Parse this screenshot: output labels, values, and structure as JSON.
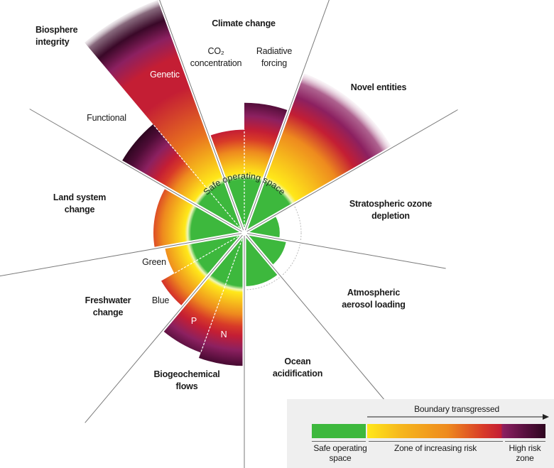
{
  "safe_operating_space_label": "Safe operating space",
  "colors": {
    "safe": "#3db83d",
    "increasing_risk_start": "#ffe81a",
    "increasing_risk_mid": "#ee8a1e",
    "increasing_risk_end": "#c41e34",
    "high_risk": "#8c2060",
    "high_risk_end": "#2e0620"
  },
  "boundaries": [
    {
      "title": [
        "Climate change"
      ],
      "subs": [
        {
          "label": [
            "CO₂",
            "concentration"
          ],
          "level": 1.84
        },
        {
          "label": [
            "Radiative",
            "forcing"
          ],
          "level": 2.32
        }
      ]
    },
    {
      "title": [
        "Novel entities"
      ],
      "subs": [
        {
          "label": [],
          "level": 3.04,
          "off_scale": true
        }
      ]
    },
    {
      "title": [
        "Stratospheric ozone",
        "depletion"
      ],
      "subs": [
        {
          "label": [],
          "level": 0.63
        }
      ]
    },
    {
      "title": [
        "Atmospheric",
        "aerosol loading"
      ],
      "subs": [
        {
          "label": [],
          "level": 0.76
        }
      ]
    },
    {
      "title": [
        "Ocean",
        "acidification"
      ],
      "subs": [
        {
          "label": [],
          "level": 0.95
        }
      ]
    },
    {
      "title": [
        "Biogeochemical",
        "flows"
      ],
      "subs": [
        {
          "label": [
            "N"
          ],
          "level": 2.37
        },
        {
          "label": [
            "P"
          ],
          "level": 2.27
        }
      ]
    },
    {
      "title": [
        "Freshwater",
        "change"
      ],
      "subs": [
        {
          "label": [
            "Blue"
          ],
          "level": 1.71
        },
        {
          "label": [
            "Green"
          ],
          "level": 1.44
        }
      ]
    },
    {
      "title": [
        "Land system",
        "change"
      ],
      "subs": [
        {
          "label": [],
          "level": 1.62
        }
      ]
    },
    {
      "title": [
        "Biosphere",
        "integrity"
      ],
      "subs": [
        {
          "label": [
            "Functional"
          ],
          "level": 2.53
        },
        {
          "label": [
            "Genetic"
          ],
          "level": 4.43,
          "off_scale": true
        }
      ]
    }
  ],
  "legend": {
    "arrow_label": "Boundary transgressed",
    "safe": [
      "Safe operating",
      "space"
    ],
    "increasing": "Zone of increasing risk",
    "high": [
      "High risk",
      "zone"
    ]
  }
}
